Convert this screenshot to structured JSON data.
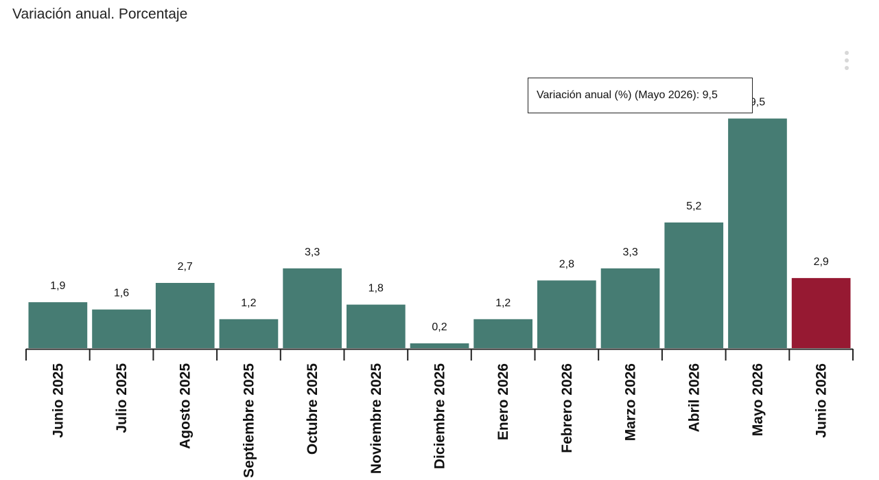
{
  "subtitle": "Variación anual. Porcentaje",
  "tooltip": {
    "text": "Variación anual (%) (Mayo 2026): 9,5"
  },
  "menu_icon": "kebab-menu-icon",
  "colors": {
    "bar": "#467c73",
    "highlight": "#961932",
    "axis": "#222222"
  },
  "chart_data": {
    "type": "bar",
    "categories": [
      "Junio 2025",
      "Julio 2025",
      "Agosto 2025",
      "Septiembre 2025",
      "Octubre 2025",
      "Noviembre 2025",
      "Diciembre 2025",
      "Enero 2026",
      "Febrero 2026",
      "Marzo 2026",
      "Abril 2026",
      "Mayo 2026",
      "Junio 2026"
    ],
    "series": [
      {
        "values": [
          1.9,
          1.6,
          2.7,
          1.2,
          3.3,
          1.8,
          0.2,
          1.2,
          2.8,
          3.3,
          5.2,
          9.5,
          2.9
        ],
        "labels": [
          "1,9",
          "1,6",
          "2,7",
          "1,2",
          "3,3",
          "1,8",
          "0,2",
          "1,2",
          "2,8",
          "3,3",
          "5,2",
          "9,5",
          "2,9"
        ]
      }
    ],
    "highlight_index": 12,
    "ylim": [
      0,
      10
    ],
    "grid": false,
    "legend": "none"
  }
}
